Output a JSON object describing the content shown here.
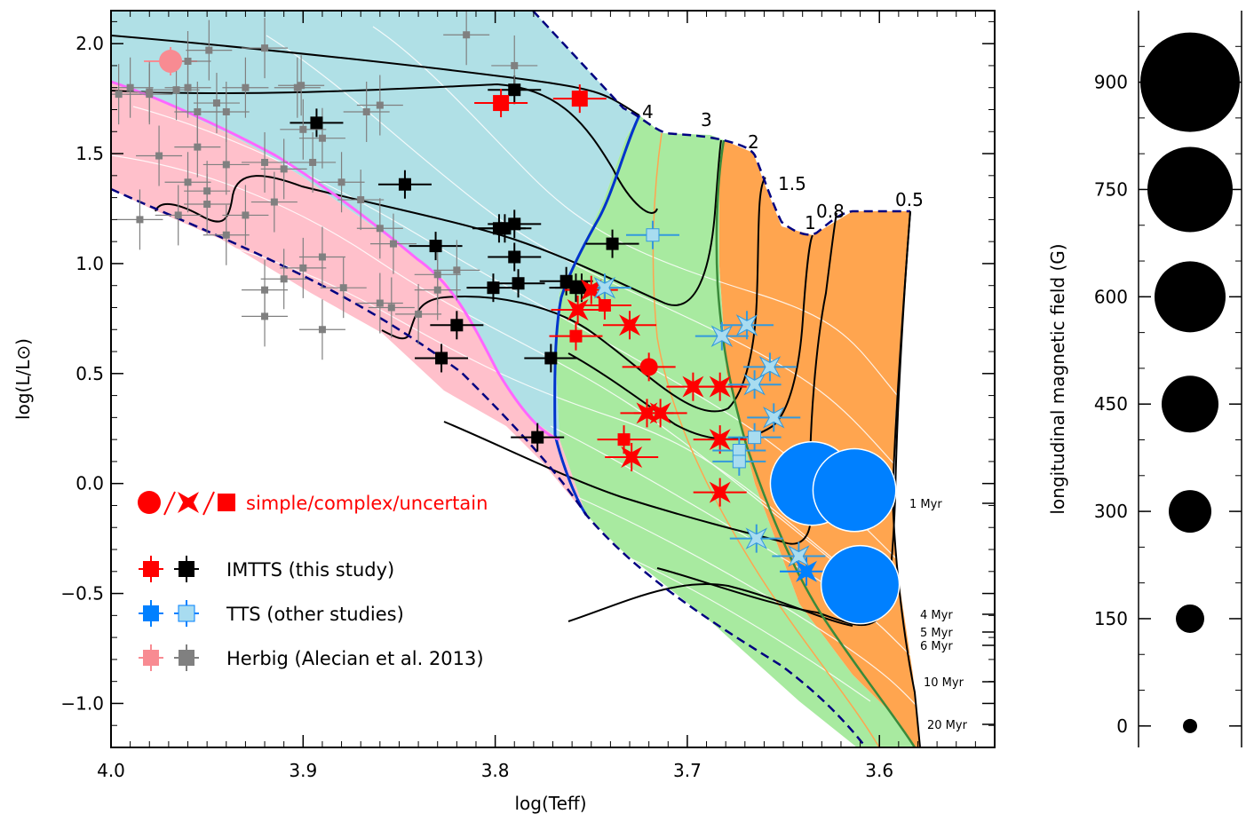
{
  "chart_data": [
    {
      "type": "scatter",
      "xlabel": "log(Teff)",
      "ylabel": "log(L/L⊙)",
      "xlim": [
        4.0,
        3.54
      ],
      "ylim": [
        -1.2,
        2.15
      ],
      "x_ticks": [
        "4.0",
        "3.9",
        "3.8",
        "3.7",
        "3.6"
      ],
      "y_ticks": [
        "2.0",
        "1.5",
        "1.0",
        "0.5",
        "0.0",
        "−0.5",
        "−1.0"
      ],
      "mass_labels": [
        "4",
        "3",
        "2",
        "1.5",
        "1",
        "0.8",
        "0.5"
      ],
      "isochrone_labels": [
        "1 Myr",
        "4 Myr",
        "5 Myr",
        "6 Myr",
        "10 Myr",
        "20 Myr"
      ],
      "legend": {
        "symbols_text": "simple/complex/uncertain",
        "entries": [
          {
            "label": "IMTTS (this study)",
            "colors": [
              "#ff0000",
              "#000000"
            ]
          },
          {
            "label": "TTS (other studies)",
            "colors": [
              "#0080ff",
              "#a8dcf0"
            ]
          },
          {
            "label": "Herbig (Alecian et al. 2013)",
            "colors": [
              "#f88b92",
              "#808080"
            ]
          }
        ]
      },
      "colors": {
        "radiative_region": "#b0e0e6",
        "herbig_region": "#ffc0cb",
        "convective_region": "#a8eaa0",
        "fully_convective_region": "#ffa54f",
        "imtts_magnetic": "#ff0000",
        "imtts_nondetect": "#000000",
        "tts_magnetic": "#0080ff",
        "tts_light": "#a8dcf0",
        "herbig_magnetic": "#f88b92",
        "herbig_nondetect": "#808080"
      },
      "series": [
        {
          "name": "IMTTS (this study)",
          "marker": "square",
          "color": "#000000",
          "points": [
            [
              3.79,
              1.79
            ],
            [
              3.893,
              1.64
            ],
            [
              3.847,
              1.36
            ],
            [
              3.831,
              1.08
            ],
            [
              3.798,
              1.16
            ],
            [
              3.795,
              1.16
            ],
            [
              3.79,
              1.18
            ],
            [
              3.79,
              1.03
            ],
            [
              3.788,
              0.91
            ],
            [
              3.763,
              0.92
            ],
            [
              3.758,
              0.89
            ],
            [
              3.755,
              0.89
            ],
            [
              3.801,
              0.89
            ],
            [
              3.739,
              1.09
            ],
            [
              3.82,
              0.72
            ],
            [
              3.828,
              0.57
            ],
            [
              3.771,
              0.57
            ],
            [
              3.778,
              0.21
            ]
          ]
        },
        {
          "name": "IMTTS (this study)",
          "marker": "square",
          "color": "#ff0000",
          "points": [
            [
              3.797,
              1.73
            ],
            [
              3.756,
              1.75
            ],
            [
              3.758,
              0.67
            ],
            [
              3.743,
              0.81
            ],
            [
              3.733,
              0.2
            ]
          ]
        },
        {
          "name": "IMTTS (this study)",
          "marker": "circle",
          "color": "#ff0000",
          "points": [
            [
              3.72,
              0.53
            ]
          ]
        },
        {
          "name": "IMTTS (this study)",
          "marker": "star",
          "color": "#ff0000",
          "points": [
            [
              3.757,
              0.79
            ],
            [
              3.75,
              0.88
            ],
            [
              3.73,
              0.72
            ],
            [
              3.697,
              0.44
            ],
            [
              3.683,
              0.44
            ],
            [
              3.683,
              0.2
            ],
            [
              3.721,
              0.32
            ],
            [
              3.714,
              0.32
            ],
            [
              3.729,
              0.12
            ],
            [
              3.683,
              -0.04
            ]
          ]
        },
        {
          "name": "TTS (other studies)",
          "marker": "star",
          "color": "#a8dcf0",
          "points": [
            [
              3.743,
              0.89
            ],
            [
              3.682,
              0.67
            ],
            [
              3.669,
              0.72
            ],
            [
              3.665,
              0.45
            ],
            [
              3.657,
              0.53
            ],
            [
              3.655,
              0.3
            ],
            [
              3.664,
              -0.25
            ],
            [
              3.642,
              -0.33
            ]
          ]
        },
        {
          "name": "TTS (other studies)",
          "marker": "square",
          "color": "#a8dcf0",
          "points": [
            [
              3.718,
              1.13
            ],
            [
              3.673,
              0.15
            ],
            [
              3.673,
              0.1
            ],
            [
              3.665,
              0.21
            ],
            [
              3.609,
              -0.07
            ]
          ]
        },
        {
          "name": "TTS (other studies)",
          "marker": "circle",
          "color": "#0080ff",
          "b_G": [
            880,
            870,
            810
          ],
          "points": [
            [
              3.635,
              0.0
            ],
            [
              3.613,
              -0.03
            ],
            [
              3.61,
              -0.46
            ]
          ]
        },
        {
          "name": "TTS (other studies)",
          "marker": "star",
          "color": "#0080ff",
          "points": [
            [
              3.638,
              -0.4
            ]
          ]
        },
        {
          "name": "Herbig (Alecian et al. 2013)",
          "marker": "circle",
          "color": "#f88b92",
          "points": [
            [
              3.969,
              1.92
            ]
          ]
        },
        {
          "name": "Herbig (Alecian et al. 2013)",
          "marker": "square",
          "color": "#808080",
          "points": [
            [
              3.92,
              1.98
            ],
            [
              3.96,
              1.92
            ],
            [
              3.949,
              1.97
            ],
            [
              3.98,
              1.78
            ],
            [
              3.99,
              1.8
            ],
            [
              3.96,
              1.8
            ],
            [
              3.966,
              1.79
            ],
            [
              3.93,
              1.8
            ],
            [
              3.903,
              1.8
            ],
            [
              3.901,
              1.81
            ],
            [
              3.98,
              1.77
            ],
            [
              3.996,
              1.77
            ],
            [
              3.945,
              1.73
            ],
            [
              3.955,
              1.69
            ],
            [
              3.94,
              1.69
            ],
            [
              3.9,
              1.61
            ],
            [
              3.867,
              1.69
            ],
            [
              3.86,
              1.72
            ],
            [
              3.79,
              1.9
            ],
            [
              3.815,
              2.04
            ],
            [
              3.975,
              1.49
            ],
            [
              3.955,
              1.53
            ],
            [
              3.96,
              1.37
            ],
            [
              3.95,
              1.33
            ],
            [
              3.94,
              1.45
            ],
            [
              3.92,
              1.46
            ],
            [
              3.91,
              1.43
            ],
            [
              3.895,
              1.46
            ],
            [
              3.89,
              1.57
            ],
            [
              3.88,
              1.37
            ],
            [
              3.87,
              1.29
            ],
            [
              3.915,
              1.28
            ],
            [
              3.93,
              1.22
            ],
            [
              3.94,
              1.13
            ],
            [
              3.965,
              1.22
            ],
            [
              3.985,
              1.2
            ],
            [
              3.86,
              1.16
            ],
            [
              3.853,
              1.09
            ],
            [
              3.89,
              1.03
            ],
            [
              3.95,
              1.27
            ],
            [
              3.9,
              0.98
            ],
            [
              3.91,
              0.93
            ],
            [
              3.92,
              0.88
            ],
            [
              3.86,
              0.82
            ],
            [
              3.84,
              0.77
            ],
            [
              3.83,
              0.95
            ],
            [
              3.82,
              0.97
            ],
            [
              3.83,
              0.88
            ],
            [
              3.854,
              0.8
            ],
            [
              3.879,
              0.89
            ],
            [
              3.89,
              0.7
            ],
            [
              3.92,
              0.76
            ]
          ]
        }
      ]
    },
    {
      "type": "scatter",
      "ylabel": "longitudinal magnetic field (G)",
      "ylim": [
        -30,
        1000
      ],
      "y_ticks": [
        "0",
        "150",
        "300",
        "450",
        "600",
        "750",
        "900"
      ],
      "reference_values": [
        0,
        150,
        300,
        450,
        600,
        750,
        900
      ]
    }
  ]
}
